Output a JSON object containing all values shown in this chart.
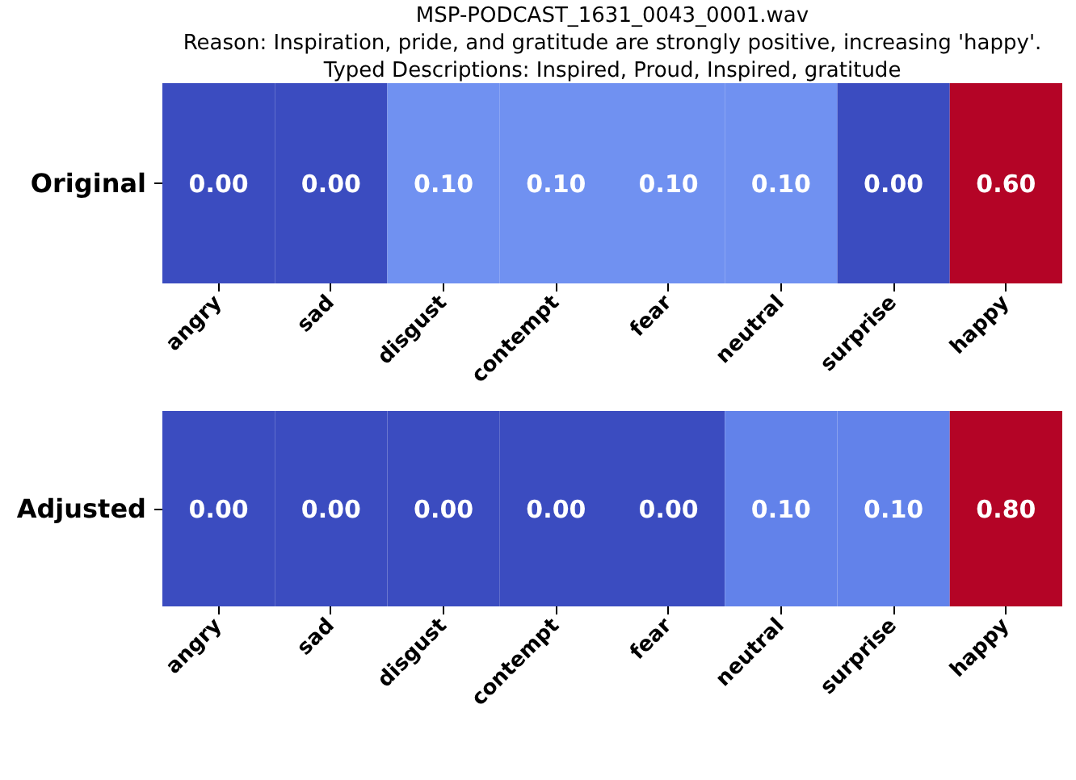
{
  "chart_data": [
    {
      "type": "heatmap",
      "title": "MSP-PODCAST_1631_0043_0001.wav",
      "subtitle": "Reason: Inspiration, pride, and gratitude are strongly positive, increasing 'happy'.",
      "annotations": [
        "Typed Descriptions: Inspired, Proud, Inspired, gratitude"
      ],
      "categories": [
        "angry",
        "sad",
        "disgust",
        "contempt",
        "fear",
        "neutral",
        "surprise",
        "happy"
      ],
      "y_categories": [
        "Original"
      ],
      "cells": [
        [
          0.0,
          0.0,
          0.1,
          0.1,
          0.1,
          0.1,
          0.0,
          0.6
        ]
      ],
      "cell_labels": [
        [
          "0.00",
          "0.00",
          "0.10",
          "0.10",
          "0.10",
          "0.10",
          "0.00",
          "0.60"
        ]
      ]
    },
    {
      "type": "heatmap",
      "categories": [
        "angry",
        "sad",
        "disgust",
        "contempt",
        "fear",
        "neutral",
        "surprise",
        "happy"
      ],
      "y_categories": [
        "Adjusted"
      ],
      "cells": [
        [
          0.0,
          0.0,
          0.0,
          0.0,
          0.0,
          0.1,
          0.1,
          0.8
        ]
      ],
      "cell_labels": [
        [
          "0.00",
          "0.00",
          "0.00",
          "0.00",
          "0.00",
          "0.10",
          "0.10",
          "0.80"
        ]
      ]
    }
  ]
}
